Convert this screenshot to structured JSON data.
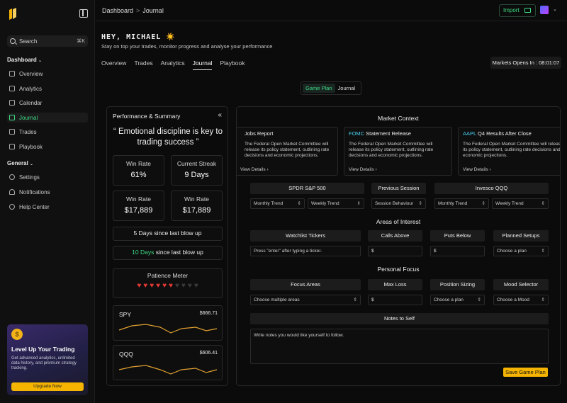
{
  "sidebar": {
    "search_placeholder": "Search",
    "search_shortcut": "⌘K",
    "dashboard_title": "Dashboard",
    "dashboard_items": [
      {
        "label": "Overview",
        "icon": "grid-icon"
      },
      {
        "label": "Analytics",
        "icon": "chart-icon"
      },
      {
        "label": "Calendar",
        "icon": "calendar-icon"
      },
      {
        "label": "Journal",
        "icon": "journal-icon",
        "active": true
      },
      {
        "label": "Trades",
        "icon": "bar-chart-icon"
      },
      {
        "label": "Playbook",
        "icon": "book-icon"
      }
    ],
    "general_title": "General",
    "general_items": [
      {
        "label": "Settings",
        "icon": "gear-icon"
      },
      {
        "label": "Notifications",
        "icon": "bell-icon"
      },
      {
        "label": "Help Center",
        "icon": "help-icon"
      }
    ],
    "promo": {
      "title": "Level Up Your Trading",
      "text": "Get advanced analytics, unlimited data history, and premium strategy tracking.",
      "button": "Upgrade Now"
    }
  },
  "topbar": {
    "breadcrumb_root": "Dashboard",
    "breadcrumb_sep": ">",
    "breadcrumb_current": "Journal",
    "import_label": "Import"
  },
  "header": {
    "greeting": "HEY, MICHAEL ☀️",
    "subtitle": "Stay on top your trades, monitor progress and analyse your performance",
    "tabs": [
      "Overview",
      "Trades",
      "Analytics",
      "Journal",
      "Playbook"
    ],
    "market_opens": "Markets Opens In : 08:01:07"
  },
  "toggle": {
    "game_plan": "Game Plan",
    "journal": "Journal"
  },
  "performance": {
    "title": "Performance & Summary",
    "quote": "“ Emotional discipline is key to trading success ”",
    "stats": [
      {
        "label": "Win Rate",
        "value": "61%"
      },
      {
        "label": "Current Streak",
        "value": "9 Days"
      },
      {
        "label": "Win Rate",
        "value": "$17,889"
      },
      {
        "label": "Win Rate",
        "value": "$17,889"
      }
    ],
    "days_blowup_1_num": "5 Days",
    "days_blowup_1_text": " since last blow up",
    "days_blowup_2_num": "10 Days",
    "days_blowup_2_text": " since last blow up",
    "patience_title": "Patience Meter",
    "patience_filled": 6,
    "patience_total": 10,
    "tickers": [
      {
        "symbol": "SPY",
        "price": "$666.71"
      },
      {
        "symbol": "QQQ",
        "price": "$606.41"
      }
    ]
  },
  "main": {
    "market_context_title": "Market Context",
    "news": [
      {
        "title_pre": "",
        "title_accent": "",
        "title_post": "Jobs Report",
        "body": "The Federal Open Market Committee will release its policy statement, outlining rate decisions and economic projections.",
        "link": "View Details"
      },
      {
        "title_pre": "",
        "title_accent": "FOMC",
        "title_post": " Statement Release",
        "body": "The Federal Open Market Committee will release its policy statement, outlining rate decisions and economic projections.",
        "link": "View Details"
      },
      {
        "title_pre": "",
        "title_accent": "AAPL",
        "title_post": " Q4 Results After Close",
        "body": "The Federal Open Market Committee will release its policy statement, outlining rate decisions and economic projections.",
        "link": "View Details"
      }
    ],
    "instruments": [
      "SPDR S&P 500",
      "Previous Session",
      "Invesco QQQ"
    ],
    "selects_row1": [
      "Monthly Trend",
      "Weekly Trend",
      "Session Behaviour",
      "Monthly Trend",
      "Weekly Trend"
    ],
    "areas_title": "Areas of Interest",
    "areas_headers": [
      "Watchlist Tickers",
      "Calls Above",
      "Puts Below",
      "Planned Setups"
    ],
    "watchlist_placeholder": "Press \"enter\" after typing a ticker.",
    "dollar": "$",
    "choose_plan": "Choose a plan",
    "personal_focus_title": "Personal Focus",
    "focus_headers": [
      "Focus Areas",
      "Max Loss",
      "Position Sizing",
      "Mood Selector"
    ],
    "choose_multiple": "Choose multiple areas",
    "choose_mood": "Choose a Mood",
    "notes_title": "Notes to Self",
    "notes_placeholder": "Write notes you would like yourself to follow.",
    "save_button": "Save Game Plan"
  },
  "colors": {
    "accent": "#3ddc84",
    "warning": "#f5b400",
    "news_accent": "#4ad0f0",
    "line": "#e0a030"
  }
}
